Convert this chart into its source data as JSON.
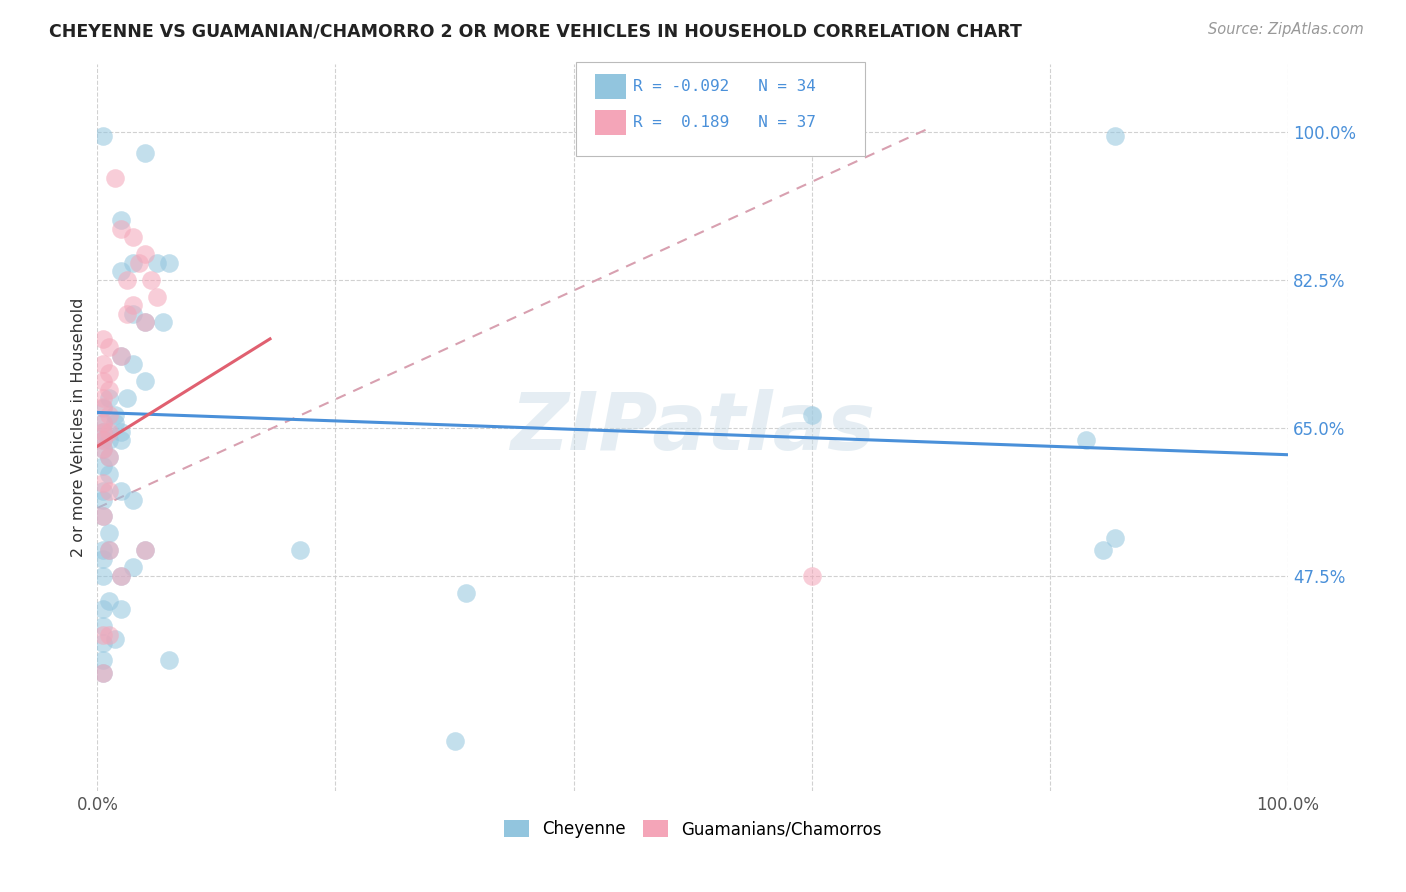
{
  "title": "CHEYENNE VS GUAMANIAN/CHAMORRO 2 OR MORE VEHICLES IN HOUSEHOLD CORRELATION CHART",
  "source": "Source: ZipAtlas.com",
  "ylabel": "2 or more Vehicles in Household",
  "ytick_labels": [
    "47.5%",
    "65.0%",
    "82.5%",
    "100.0%"
  ],
  "ytick_values": [
    0.475,
    0.65,
    0.825,
    1.0
  ],
  "xlim": [
    0.0,
    1.0
  ],
  "ylim": [
    0.22,
    1.08
  ],
  "blue_color": "#92c5de",
  "pink_color": "#f4a5b8",
  "blue_line_color": "#4a90d9",
  "pink_line_color": "#e06070",
  "pink_dashed_color": "#d8a0b0",
  "watermark": "ZIPatlas",
  "cheyenne_points": [
    [
      0.005,
      0.995
    ],
    [
      0.02,
      0.895
    ],
    [
      0.04,
      0.975
    ],
    [
      0.02,
      0.835
    ],
    [
      0.03,
      0.845
    ],
    [
      0.05,
      0.845
    ],
    [
      0.06,
      0.845
    ],
    [
      0.03,
      0.785
    ],
    [
      0.04,
      0.775
    ],
    [
      0.055,
      0.775
    ],
    [
      0.02,
      0.735
    ],
    [
      0.03,
      0.725
    ],
    [
      0.04,
      0.705
    ],
    [
      0.01,
      0.685
    ],
    [
      0.025,
      0.685
    ],
    [
      0.005,
      0.673
    ],
    [
      0.015,
      0.665
    ],
    [
      0.005,
      0.655
    ],
    [
      0.015,
      0.655
    ],
    [
      0.005,
      0.645
    ],
    [
      0.02,
      0.645
    ],
    [
      0.005,
      0.635
    ],
    [
      0.01,
      0.635
    ],
    [
      0.02,
      0.635
    ],
    [
      0.005,
      0.625
    ],
    [
      0.01,
      0.615
    ],
    [
      0.005,
      0.605
    ],
    [
      0.01,
      0.595
    ],
    [
      0.005,
      0.575
    ],
    [
      0.02,
      0.575
    ],
    [
      0.005,
      0.565
    ],
    [
      0.03,
      0.565
    ],
    [
      0.005,
      0.545
    ],
    [
      0.01,
      0.525
    ],
    [
      0.005,
      0.505
    ],
    [
      0.01,
      0.505
    ],
    [
      0.04,
      0.505
    ],
    [
      0.005,
      0.495
    ],
    [
      0.03,
      0.485
    ],
    [
      0.005,
      0.475
    ],
    [
      0.02,
      0.475
    ],
    [
      0.01,
      0.445
    ],
    [
      0.005,
      0.435
    ],
    [
      0.02,
      0.435
    ],
    [
      0.005,
      0.415
    ],
    [
      0.005,
      0.395
    ],
    [
      0.015,
      0.4
    ],
    [
      0.005,
      0.375
    ],
    [
      0.005,
      0.36
    ],
    [
      0.06,
      0.375
    ],
    [
      0.17,
      0.505
    ],
    [
      0.31,
      0.455
    ],
    [
      0.6,
      0.665
    ],
    [
      0.83,
      0.635
    ],
    [
      0.855,
      0.995
    ],
    [
      0.855,
      0.52
    ],
    [
      0.845,
      0.505
    ],
    [
      0.3,
      0.28
    ]
  ],
  "guamanian_points": [
    [
      0.015,
      0.945
    ],
    [
      0.02,
      0.885
    ],
    [
      0.03,
      0.875
    ],
    [
      0.04,
      0.855
    ],
    [
      0.035,
      0.845
    ],
    [
      0.025,
      0.825
    ],
    [
      0.045,
      0.825
    ],
    [
      0.05,
      0.805
    ],
    [
      0.03,
      0.795
    ],
    [
      0.025,
      0.785
    ],
    [
      0.04,
      0.775
    ],
    [
      0.005,
      0.755
    ],
    [
      0.01,
      0.745
    ],
    [
      0.02,
      0.735
    ],
    [
      0.005,
      0.725
    ],
    [
      0.01,
      0.715
    ],
    [
      0.005,
      0.705
    ],
    [
      0.01,
      0.695
    ],
    [
      0.005,
      0.685
    ],
    [
      0.005,
      0.675
    ],
    [
      0.01,
      0.665
    ],
    [
      0.005,
      0.655
    ],
    [
      0.005,
      0.645
    ],
    [
      0.01,
      0.645
    ],
    [
      0.005,
      0.635
    ],
    [
      0.005,
      0.625
    ],
    [
      0.01,
      0.615
    ],
    [
      0.005,
      0.585
    ],
    [
      0.01,
      0.575
    ],
    [
      0.005,
      0.545
    ],
    [
      0.01,
      0.505
    ],
    [
      0.04,
      0.505
    ],
    [
      0.02,
      0.475
    ],
    [
      0.005,
      0.405
    ],
    [
      0.01,
      0.405
    ],
    [
      0.005,
      0.36
    ],
    [
      0.6,
      0.475
    ]
  ],
  "blue_trend": {
    "x": [
      0.0,
      1.0
    ],
    "y": [
      0.668,
      0.618
    ]
  },
  "pink_solid_trend": {
    "x": [
      0.0,
      0.145
    ],
    "y": [
      0.628,
      0.755
    ]
  },
  "pink_dashed_trend": {
    "x": [
      0.0,
      0.7
    ],
    "y": [
      0.555,
      1.005
    ]
  }
}
